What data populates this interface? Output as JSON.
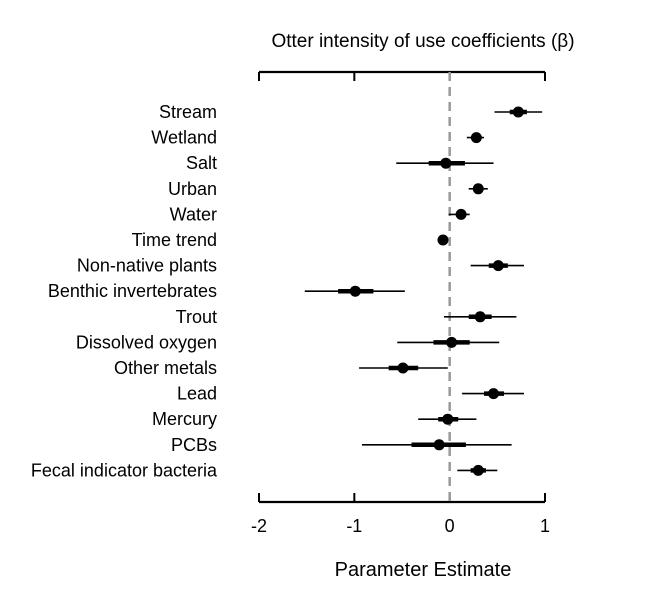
{
  "chart_data": {
    "type": "forest",
    "title": "Otter intensity of use coefficients (β)",
    "xlabel": "Parameter Estimate",
    "xlim": [
      -2,
      1
    ],
    "xticks": [
      -2,
      -1,
      0,
      1
    ],
    "xtick_labels": [
      "-2",
      "-1",
      "0",
      "1"
    ],
    "reference_line": 0,
    "grid": false,
    "colors": {
      "marks": "#000000",
      "reference_line": "#999999"
    },
    "rows": [
      {
        "label": "Stream",
        "estimate": 0.72,
        "ci50": [
          0.63,
          0.81
        ],
        "ci95": [
          0.47,
          0.97
        ]
      },
      {
        "label": "Wetland",
        "estimate": 0.28,
        "ci50": [
          0.24,
          0.32
        ],
        "ci95": [
          0.18,
          0.36
        ]
      },
      {
        "label": "Salt",
        "estimate": -0.04,
        "ci50": [
          -0.22,
          0.16
        ],
        "ci95": [
          -0.56,
          0.46
        ]
      },
      {
        "label": "Urban",
        "estimate": 0.3,
        "ci50": [
          0.25,
          0.34
        ],
        "ci95": [
          0.2,
          0.4
        ]
      },
      {
        "label": "Water",
        "estimate": 0.12,
        "ci50": [
          0.07,
          0.16
        ],
        "ci95": [
          -0.01,
          0.21
        ]
      },
      {
        "label": "Time trend",
        "estimate": -0.07,
        "ci50": [
          -0.08,
          -0.06
        ],
        "ci95": [
          -0.09,
          -0.05
        ]
      },
      {
        "label": "Non-native plants",
        "estimate": 0.51,
        "ci50": [
          0.41,
          0.61
        ],
        "ci95": [
          0.22,
          0.78
        ]
      },
      {
        "label": "Benthic invertebrates",
        "estimate": -0.99,
        "ci50": [
          -1.17,
          -0.8
        ],
        "ci95": [
          -1.52,
          -0.47
        ]
      },
      {
        "label": "Trout",
        "estimate": 0.32,
        "ci50": [
          0.2,
          0.44
        ],
        "ci95": [
          -0.06,
          0.7
        ]
      },
      {
        "label": "Dissolved oxygen",
        "estimate": 0.02,
        "ci50": [
          -0.17,
          0.21
        ],
        "ci95": [
          -0.55,
          0.52
        ]
      },
      {
        "label": "Other metals",
        "estimate": -0.49,
        "ci50": [
          -0.64,
          -0.33
        ],
        "ci95": [
          -0.95,
          -0.02
        ]
      },
      {
        "label": "Lead",
        "estimate": 0.46,
        "ci50": [
          0.36,
          0.57
        ],
        "ci95": [
          0.13,
          0.78
        ]
      },
      {
        "label": "Mercury",
        "estimate": -0.02,
        "ci50": [
          -0.12,
          0.09
        ],
        "ci95": [
          -0.33,
          0.28
        ]
      },
      {
        "label": "PCBs",
        "estimate": -0.11,
        "ci50": [
          -0.4,
          0.17
        ],
        "ci95": [
          -0.92,
          0.65
        ]
      },
      {
        "label": "Fecal indicator bacteria",
        "estimate": 0.3,
        "ci50": [
          0.22,
          0.38
        ],
        "ci95": [
          0.08,
          0.5
        ]
      }
    ]
  }
}
